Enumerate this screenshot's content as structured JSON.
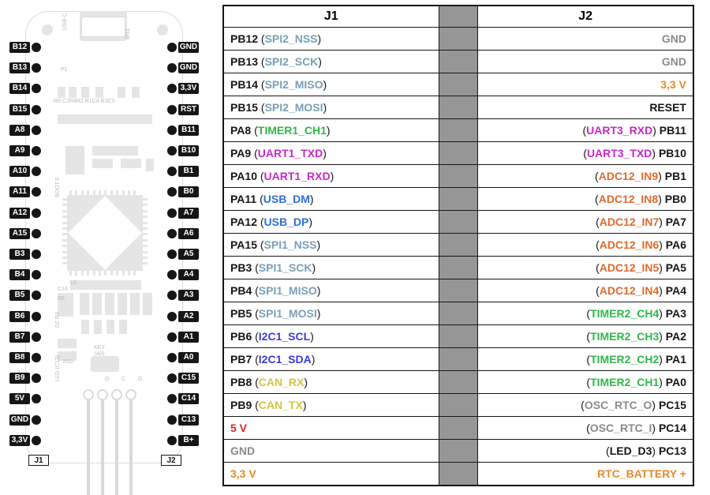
{
  "colors": {
    "black": "#161616",
    "gray": "#8a8a8a",
    "spi": "#7a9fb7",
    "uart": "#c828c8",
    "usb": "#2f6fe0",
    "i2c": "#3a3ae0",
    "can": "#d6c542",
    "red": "#d82626",
    "orange": "#e38b2b",
    "adc": "#e06a2e",
    "timer": "#2fb84a"
  },
  "headers": {
    "j1": "J1",
    "j2": "J2"
  },
  "board": {
    "leftHeader": "J1",
    "rightHeader": "J2",
    "left": [
      "B12",
      "B13",
      "B14",
      "B15",
      "A8",
      "A9",
      "A10",
      "A11",
      "A12",
      "A15",
      "B3",
      "B4",
      "B5",
      "B6",
      "B7",
      "B8",
      "B9",
      "5V",
      "GND",
      "3,3V"
    ],
    "right": [
      "GND",
      "GND",
      "3,3V",
      "RST",
      "B11",
      "B10",
      "B1",
      "B0",
      "A7",
      "A6",
      "A5",
      "A4",
      "A3",
      "A2",
      "A1",
      "A0",
      "C15",
      "C14",
      "C13",
      "B+"
    ]
  },
  "rows": [
    {
      "j1_pin": "PB12",
      "j1_fn": "SPI2_NSS",
      "j1_col": "spi",
      "j2_pin": "GND",
      "j2_col": "gray"
    },
    {
      "j1_pin": "PB13",
      "j1_fn": "SPI2_SCK",
      "j1_col": "spi",
      "j2_pin": "GND",
      "j2_col": "gray"
    },
    {
      "j1_pin": "PB14",
      "j1_fn": "SPI2_MISO",
      "j1_col": "spi",
      "j2_pin": "3,3 V",
      "j2_col": "orange"
    },
    {
      "j1_pin": "PB15",
      "j1_fn": "SPI2_MOSI",
      "j1_col": "spi",
      "j2_pin": "RESET",
      "j2_col": "black"
    },
    {
      "j1_pin": "PA8",
      "j1_fn": "TIMER1_CH1",
      "j1_col": "timer",
      "j2_pin": "PB11",
      "j2_fn": "UART3_RXD",
      "j2_col": "uart"
    },
    {
      "j1_pin": "PA9",
      "j1_fn": "UART1_TXD",
      "j1_col": "uart",
      "j2_pin": "PB10",
      "j2_fn": "UART3_TXD",
      "j2_col": "uart"
    },
    {
      "j1_pin": "PA10",
      "j1_fn": "UART1_RXD",
      "j1_col": "uart",
      "j2_pin": "PB1",
      "j2_fn": "ADC12_IN9",
      "j2_col": "adc"
    },
    {
      "j1_pin": "PA11",
      "j1_fn": "USB_DM",
      "j1_col": "usb",
      "j2_pin": "PB0",
      "j2_fn": "ADC12_IN8",
      "j2_col": "adc"
    },
    {
      "j1_pin": "PA12",
      "j1_fn": "USB_DP",
      "j1_col": "usb",
      "j2_pin": "PA7",
      "j2_fn": "ADC12_IN7",
      "j2_col": "adc"
    },
    {
      "j1_pin": "PA15",
      "j1_fn": "SPI1_NSS",
      "j1_col": "spi",
      "j2_pin": "PA6",
      "j2_fn": "ADC12_IN6",
      "j2_col": "adc"
    },
    {
      "j1_pin": "PB3",
      "j1_fn": "SPI1_SCK",
      "j1_col": "spi",
      "j2_pin": "PA5",
      "j2_fn": "ADC12_IN5",
      "j2_col": "adc"
    },
    {
      "j1_pin": "PB4",
      "j1_fn": "SPI1_MISO",
      "j1_col": "spi",
      "j2_pin": "PA4",
      "j2_fn": "ADC12_IN4",
      "j2_col": "adc"
    },
    {
      "j1_pin": "PB5",
      "j1_fn": "SPI1_MOSI",
      "j1_col": "spi",
      "j2_pin": "PA3",
      "j2_fn": "TIMER2_CH4",
      "j2_col": "timer"
    },
    {
      "j1_pin": "PB6",
      "j1_fn": "I2C1_SCL",
      "j1_col": "i2c",
      "j2_pin": "PA2",
      "j2_fn": "TIMER2_CH3",
      "j2_col": "timer"
    },
    {
      "j1_pin": "PB7",
      "j1_fn": "I2C1_SDA",
      "j1_col": "i2c",
      "j2_pin": "PA1",
      "j2_fn": "TIMER2_CH2",
      "j2_col": "timer"
    },
    {
      "j1_pin": "PB8",
      "j1_fn": "CAN_RX",
      "j1_col": "can",
      "j2_pin": "PA0",
      "j2_fn": "TIMER2_CH1",
      "j2_col": "timer"
    },
    {
      "j1_pin": "PB9",
      "j1_fn": "CAN_TX",
      "j1_col": "can",
      "j2_pin": "PC15",
      "j2_fn": "OSC_RTC_O",
      "j2_col": "gray"
    },
    {
      "j1_pin": "5 V",
      "j1_col": "red",
      "j2_pin": "PC14",
      "j2_fn": "OSC_RTC_I",
      "j2_col": "gray"
    },
    {
      "j1_pin": "GND",
      "j1_col": "gray",
      "j2_pin": "PC13",
      "j2_fn": "LED_D3",
      "j2_col": "black"
    },
    {
      "j1_pin": "3,3 V",
      "j1_col": "orange",
      "j2_pin": "RTC_BATTERY +",
      "j2_col": "orange"
    }
  ],
  "layout": {
    "pinStartY": 48,
    "pinStep": 26.2,
    "dotLeftX": 8,
    "dotRightX": 180,
    "labelOffset": 28
  }
}
